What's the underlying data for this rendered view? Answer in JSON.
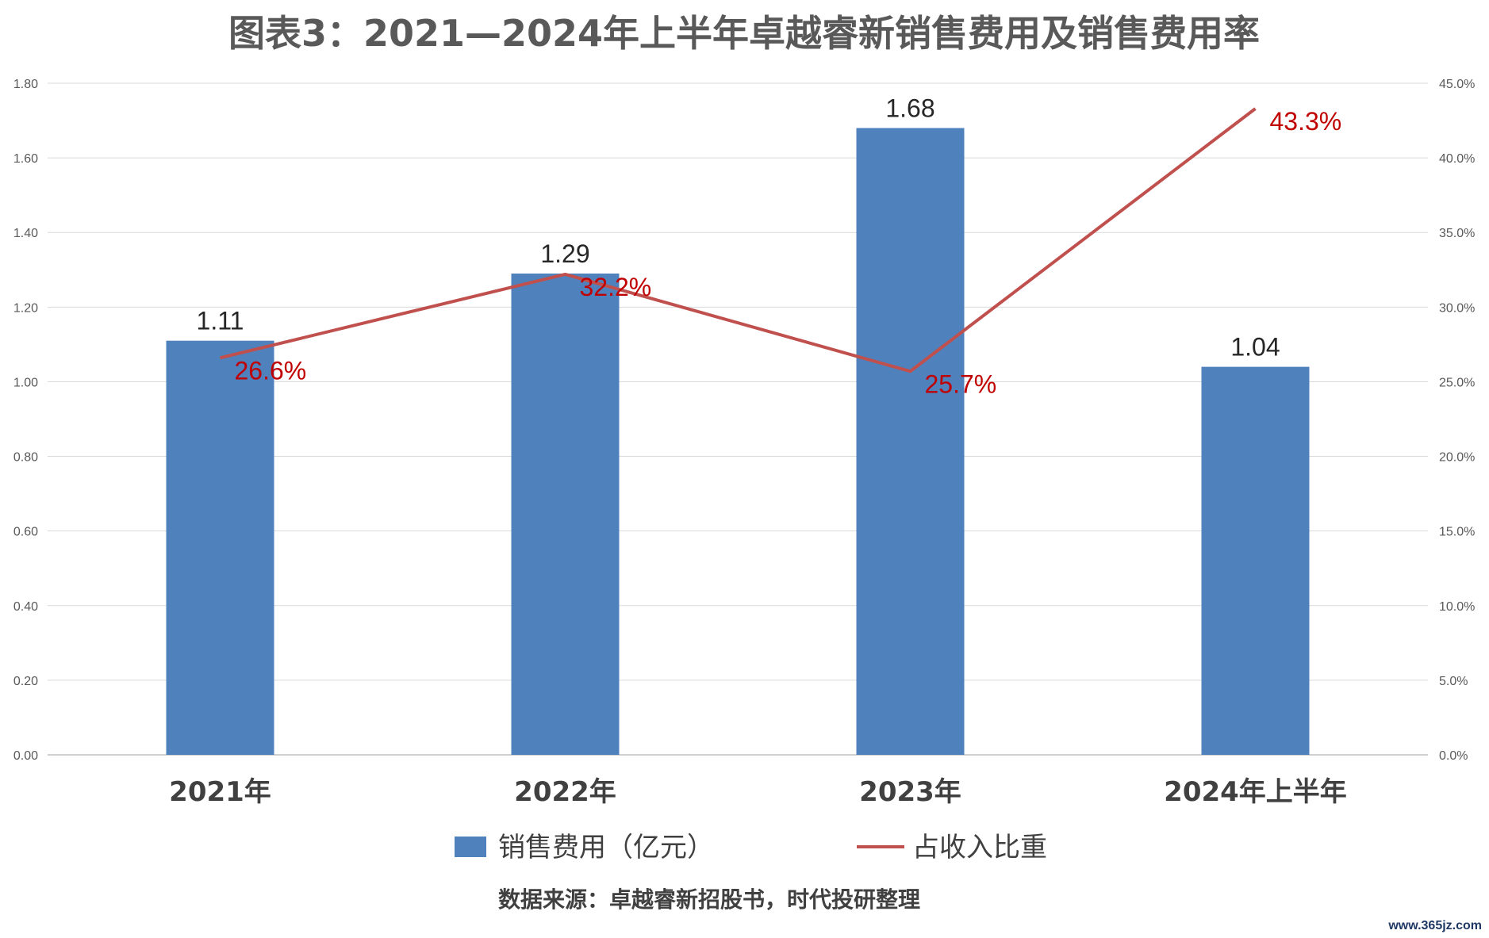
{
  "chart_data": {
    "type": "bar",
    "title": "图表3：2021—2024年上半年卓越睿新销售费用及销售费用率",
    "categories": [
      "2021年",
      "2022年",
      "2023年",
      "2024年上半年"
    ],
    "series": [
      {
        "name": "销售费用（亿元）",
        "type": "bar",
        "axis": "left",
        "values": [
          1.11,
          1.29,
          1.68,
          1.04
        ],
        "labels": [
          "1.11",
          "1.29",
          "1.68",
          "1.04"
        ],
        "color": "#4f81bd"
      },
      {
        "name": "占收入比重",
        "type": "line",
        "axis": "right",
        "values": [
          26.6,
          32.2,
          25.7,
          43.3
        ],
        "labels": [
          "26.6%",
          "32.2%",
          "25.7%",
          "43.3%"
        ],
        "color": "#c0504d"
      }
    ],
    "y_left": {
      "ylim": [
        0,
        1.8
      ],
      "ticks": [
        "0.00",
        "0.20",
        "0.40",
        "0.60",
        "0.80",
        "1.00",
        "1.20",
        "1.40",
        "1.60",
        "1.80"
      ]
    },
    "y_right": {
      "ylim": [
        0,
        45
      ],
      "ticks": [
        "0.0%",
        "5.0%",
        "10.0%",
        "15.0%",
        "20.0%",
        "25.0%",
        "30.0%",
        "35.0%",
        "40.0%",
        "45.0%"
      ]
    },
    "grid": true,
    "legend_position": "bottom"
  },
  "source_note": "数据来源：卓越睿新招股书，时代投研整理",
  "watermark": "www.365jz.com",
  "colors": {
    "bar": "#4f81bd",
    "line": "#c0504d",
    "line_label": "#c00000",
    "grid": "#d9d9d9"
  }
}
